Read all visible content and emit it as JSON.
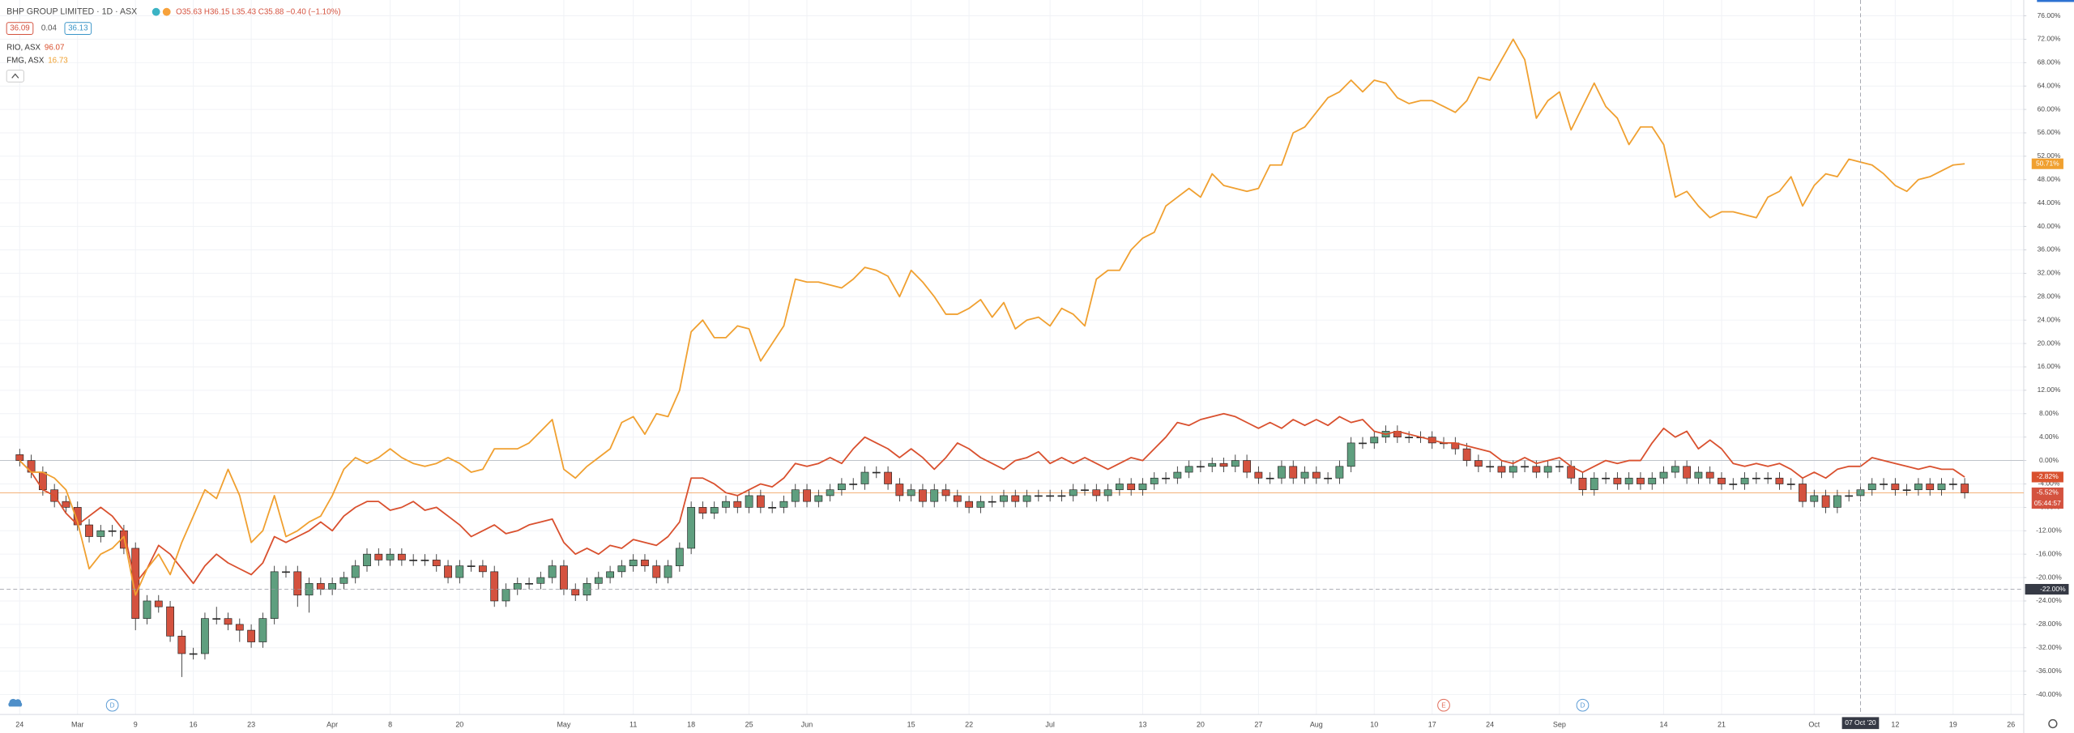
{
  "header": {
    "title": "BHP GROUP LIMITED · 1D · ASX",
    "ohlc": "O35.63 H36.15 L35.43 C35.88 −0.40 (−1.10%)",
    "bid": "36.09",
    "spread": "0.04",
    "ask": "36.13"
  },
  "chart_data": {
    "type": "candlestick",
    "xlim": [
      -1.7,
      173.1
    ],
    "ylim": [
      -43.4,
      78.7
    ],
    "grid": true,
    "xticks": [
      {
        "value": 0,
        "label": "24"
      },
      {
        "value": 5,
        "label": "Mar"
      },
      {
        "value": 10,
        "label": "9"
      },
      {
        "value": 15,
        "label": "16"
      },
      {
        "value": 20,
        "label": "23"
      },
      {
        "value": 27,
        "label": "Apr"
      },
      {
        "value": 32,
        "label": "8"
      },
      {
        "value": 38,
        "label": "20"
      },
      {
        "value": 47,
        "label": "May"
      },
      {
        "value": 53,
        "label": "11"
      },
      {
        "value": 58,
        "label": "18"
      },
      {
        "value": 63,
        "label": "25"
      },
      {
        "value": 68,
        "label": "Jun"
      },
      {
        "value": 77,
        "label": "15"
      },
      {
        "value": 82,
        "label": "22"
      },
      {
        "value": 89,
        "label": "Jul"
      },
      {
        "value": 97,
        "label": "13"
      },
      {
        "value": 102,
        "label": "20"
      },
      {
        "value": 107,
        "label": "27"
      },
      {
        "value": 112,
        "label": "Aug"
      },
      {
        "value": 117,
        "label": "10"
      },
      {
        "value": 122,
        "label": "17"
      },
      {
        "value": 127,
        "label": "24"
      },
      {
        "value": 133,
        "label": "Sep"
      },
      {
        "value": 142,
        "label": "14"
      },
      {
        "value": 147,
        "label": "21"
      },
      {
        "value": 155,
        "label": "Oct"
      },
      {
        "value": 162,
        "label": "12"
      },
      {
        "value": 167,
        "label": "19"
      },
      {
        "value": 172,
        "label": "26"
      }
    ],
    "yticks": [
      {
        "value": -40,
        "label": "-40.00%"
      },
      {
        "value": -36,
        "label": "-36.00%"
      },
      {
        "value": -32,
        "label": "-32.00%"
      },
      {
        "value": -28,
        "label": "-28.00%"
      },
      {
        "value": -24,
        "label": "-24.00%"
      },
      {
        "value": -20,
        "label": "-20.00%"
      },
      {
        "value": -16,
        "label": "-16.00%"
      },
      {
        "value": -12,
        "label": "-12.00%"
      },
      {
        "value": -8,
        "label": "-8.00%"
      },
      {
        "value": -4,
        "label": "-4.00%"
      },
      {
        "value": 0,
        "label": "0.00%"
      },
      {
        "value": 4,
        "label": "4.00%"
      },
      {
        "value": 8,
        "label": "8.00%"
      },
      {
        "value": 12,
        "label": "12.00%"
      },
      {
        "value": 16,
        "label": "16.00%"
      },
      {
        "value": 20,
        "label": "20.00%"
      },
      {
        "value": 24,
        "label": "24.00%"
      },
      {
        "value": 28,
        "label": "28.00%"
      },
      {
        "value": 32,
        "label": "32.00%"
      },
      {
        "value": 36,
        "label": "36.00%"
      },
      {
        "value": 40,
        "label": "40.00%"
      },
      {
        "value": 44,
        "label": "44.00%"
      },
      {
        "value": 48,
        "label": "48.00%"
      },
      {
        "value": 52,
        "label": "52.00%"
      },
      {
        "value": 56,
        "label": "56.00%"
      },
      {
        "value": 60,
        "label": "60.00%"
      },
      {
        "value": 64,
        "label": "64.00%"
      },
      {
        "value": 68,
        "label": "68.00%"
      },
      {
        "value": 72,
        "label": "72.00%"
      },
      {
        "value": 76,
        "label": "76.00%"
      }
    ],
    "series": [
      {
        "type": "candlestick",
        "up_color": "#5f9f7f",
        "down_color": "#d4523f",
        "color": "#f3b27a",
        "last_label": "-5.52%",
        "countdown": "05:44:57",
        "open": [
          1,
          0,
          -2,
          -5,
          -7,
          -8,
          -11,
          -13,
          -12,
          -12,
          -15,
          -27,
          -24,
          -25,
          -30,
          -33,
          -33,
          -27,
          -27,
          -28,
          -29,
          -31,
          -27,
          -19,
          -19,
          -23,
          -21,
          -22,
          -21,
          -20,
          -18,
          -16,
          -17,
          -16,
          -17,
          -17,
          -17,
          -18,
          -20,
          -18,
          -18,
          -19,
          -24,
          -22,
          -21,
          -21,
          -20,
          -18,
          -22,
          -23,
          -21,
          -20,
          -19,
          -18,
          -17,
          -18,
          -20,
          -18,
          -15,
          -8,
          -9,
          -8,
          -7,
          -8,
          -6,
          -8,
          -8,
          -7,
          -5,
          -7,
          -6,
          -5,
          -4,
          -4,
          -2,
          -2,
          -4,
          -6,
          -5,
          -7,
          -5,
          -6,
          -7,
          -8,
          -7,
          -7,
          -6,
          -7,
          -6,
          -6,
          -6,
          -6,
          -5,
          -5,
          -6,
          -5,
          -4,
          -5,
          -4,
          -3,
          -3,
          -2,
          -1,
          -1,
          -0.5,
          -1,
          0,
          -2,
          -3,
          -3,
          -1,
          -3,
          -2,
          -3,
          -3,
          -1,
          3,
          3,
          4,
          5,
          4,
          4,
          4,
          3,
          3,
          2,
          0,
          -1,
          -1,
          -2,
          -1,
          -1,
          -2,
          -1,
          -1,
          -3,
          -5,
          -3,
          -3,
          -4,
          -3,
          -4,
          -3,
          -2,
          -1,
          -3,
          -2,
          -3,
          -4,
          -4,
          -3,
          -3,
          -3,
          -4,
          -4,
          -7,
          -6,
          -8,
          -6,
          -6,
          -5,
          -4,
          -4,
          -5,
          -5,
          -4,
          -5,
          -4,
          -4
        ],
        "high": [
          2,
          1,
          -1,
          -4,
          -6,
          -7,
          -10,
          -11,
          -11,
          -11,
          -14,
          -23,
          -23,
          -24,
          -29,
          -32,
          -26,
          -25,
          -26,
          -27,
          -28,
          -26,
          -18,
          -18,
          -18,
          -20,
          -20,
          -20,
          -19,
          -17,
          -15,
          -15,
          -15,
          -15,
          -16,
          -16,
          -16,
          -17,
          -17,
          -17,
          -17,
          -18,
          -21,
          -20,
          -20,
          -19,
          -17,
          -17,
          -21,
          -20,
          -19,
          -18,
          -17,
          -16,
          -16,
          -17,
          -17,
          -14,
          -7,
          -7,
          -7,
          -6,
          -6,
          -5,
          -5,
          -7,
          -6,
          -4,
          -4,
          -5,
          -4,
          -3,
          -3,
          -1,
          -1,
          -1,
          -3,
          -4,
          -4,
          -4,
          -4,
          -5,
          -6,
          -6,
          -6,
          -5,
          -5,
          -5,
          -5,
          -5,
          -5,
          -4,
          -4,
          -4,
          -4,
          -3,
          -3,
          -3,
          -2,
          -2,
          -1,
          0,
          0,
          0.5,
          0.5,
          1,
          1,
          -1,
          -2,
          0,
          0,
          -1,
          -1,
          -2,
          0,
          4,
          4,
          5,
          6,
          6,
          5,
          5,
          5,
          4,
          4,
          3,
          1,
          0,
          0,
          0,
          0,
          0,
          0,
          0,
          0,
          -2,
          -2,
          -2,
          -2,
          -2,
          -2,
          -2,
          -1,
          0,
          0,
          -1,
          -1,
          -2,
          -3,
          -2,
          -2,
          -2,
          -2,
          -3,
          -3,
          -5,
          -5,
          -5,
          -5,
          -4,
          -3,
          -3,
          -3,
          -4,
          -3,
          -3,
          -3,
          -3,
          -3
        ],
        "low": [
          -1,
          -3,
          -6,
          -8,
          -9,
          -12,
          -14,
          -14,
          -13,
          -16,
          -29,
          -28,
          -26,
          -31,
          -37,
          -34,
          -34,
          -28,
          -29,
          -31,
          -32,
          -32,
          -28,
          -20,
          -25,
          -26,
          -23,
          -23,
          -22,
          -21,
          -19,
          -18,
          -18,
          -18,
          -18,
          -18,
          -19,
          -21,
          -21,
          -19,
          -20,
          -25,
          -25,
          -23,
          -22,
          -22,
          -21,
          -23,
          -24,
          -24,
          -22,
          -21,
          -20,
          -19,
          -19,
          -21,
          -21,
          -19,
          -16,
          -10,
          -10,
          -9,
          -9,
          -9,
          -9,
          -9,
          -9,
          -8,
          -8,
          -8,
          -7,
          -6,
          -5,
          -5,
          -3,
          -5,
          -7,
          -7,
          -8,
          -8,
          -7,
          -8,
          -9,
          -9,
          -8,
          -8,
          -8,
          -8,
          -7,
          -7,
          -7,
          -7,
          -6,
          -7,
          -7,
          -6,
          -6,
          -6,
          -5,
          -4,
          -4,
          -3,
          -2,
          -2,
          -2,
          -2,
          -3,
          -4,
          -4,
          -4,
          -4,
          -4,
          -4,
          -4,
          -4,
          -2,
          2,
          2,
          3,
          3,
          3,
          3,
          2,
          2,
          1,
          -1,
          -2,
          -2,
          -3,
          -3,
          -2,
          -3,
          -3,
          -2,
          -4,
          -6,
          -6,
          -4,
          -5,
          -5,
          -5,
          -5,
          -4,
          -3,
          -4,
          -4,
          -4,
          -5,
          -5,
          -5,
          -4,
          -4,
          -5,
          -5,
          -8,
          -8,
          -9,
          -9,
          -7,
          -7,
          -6,
          -5,
          -6,
          -6,
          -6,
          -6,
          -6,
          -5,
          -6.5
        ],
        "close": [
          0,
          -2,
          -5,
          -7,
          -8,
          -11,
          -13,
          -12,
          -12,
          -15,
          -27,
          -24,
          -25,
          -30,
          -33,
          -33,
          -27,
          -27,
          -28,
          -29,
          -31,
          -27,
          -19,
          -19,
          -23,
          -21,
          -22,
          -21,
          -20,
          -18,
          -16,
          -17,
          -16,
          -17,
          -17,
          -17,
          -18,
          -20,
          -18,
          -18,
          -19,
          -24,
          -22,
          -21,
          -21,
          -20,
          -18,
          -22,
          -23,
          -21,
          -20,
          -19,
          -18,
          -17,
          -18,
          -20,
          -18,
          -15,
          -8,
          -9,
          -8,
          -7,
          -8,
          -6,
          -8,
          -8,
          -7,
          -5,
          -7,
          -6,
          -5,
          -4,
          -4,
          -2,
          -2,
          -4,
          -6,
          -5,
          -7,
          -5,
          -6,
          -7,
          -8,
          -7,
          -7,
          -6,
          -7,
          -6,
          -6,
          -6,
          -6,
          -5,
          -5,
          -6,
          -5,
          -4,
          -5,
          -4,
          -3,
          -3,
          -2,
          -1,
          -1,
          -0.5,
          -1,
          0,
          -2,
          -3,
          -3,
          -1,
          -3,
          -2,
          -3,
          -3,
          -1,
          3,
          3,
          4,
          5,
          4,
          4,
          4,
          3,
          3,
          2,
          0,
          -1,
          -1,
          -2,
          -1,
          -1,
          -2,
          -1,
          -1,
          -3,
          -5,
          -3,
          -3,
          -4,
          -3,
          -4,
          -3,
          -2,
          -1,
          -3,
          -2,
          -3,
          -4,
          -4,
          -3,
          -3,
          -3,
          -4,
          -4,
          -7,
          -6,
          -8,
          -6,
          -6,
          -5,
          -4,
          -4,
          -5,
          -5,
          -4,
          -5,
          -4,
          -4,
          -5.52
        ]
      },
      {
        "type": "line",
        "name": "RIO, ASX",
        "legend_value": "96.07",
        "color": "#d9502e",
        "last_label": "-2.82%",
        "values": [
          0,
          -2,
          -5,
          -6,
          -9,
          -11,
          -9.5,
          -8,
          -9.5,
          -12,
          -21,
          -18.5,
          -14.5,
          -16,
          -18.5,
          -21,
          -18,
          -16,
          -17.5,
          -18.5,
          -19.5,
          -17.5,
          -13,
          -14,
          -13,
          -12,
          -10.5,
          -12,
          -9.5,
          -8,
          -7,
          -7,
          -8.5,
          -8,
          -7,
          -8.5,
          -8,
          -9.5,
          -11,
          -13,
          -12,
          -11,
          -12.5,
          -12,
          -11,
          -10.5,
          -10,
          -14,
          -16,
          -15,
          -16,
          -14.5,
          -15,
          -13.5,
          -14,
          -14.5,
          -13,
          -10.5,
          -3,
          -3,
          -4,
          -5.5,
          -6,
          -5,
          -4,
          -4.5,
          -3,
          -0.5,
          -1,
          -0.5,
          0.5,
          -0.5,
          2,
          4,
          3,
          2,
          0.5,
          2,
          0.5,
          -1.5,
          0.5,
          3,
          2,
          0.5,
          -0.5,
          -1.5,
          0,
          0.5,
          1.5,
          -0.5,
          0.5,
          -0.5,
          0.5,
          -0.5,
          -1.5,
          -0.5,
          0.5,
          0,
          2,
          4,
          6.5,
          6,
          7,
          7.5,
          8,
          7.5,
          6.5,
          5.5,
          6.5,
          5.5,
          7,
          6,
          7,
          6,
          7.5,
          6.5,
          7,
          5,
          4.5,
          5,
          4.5,
          4,
          3.5,
          3,
          3,
          2.5,
          2,
          1.5,
          0,
          -0.5,
          0.5,
          -0.5,
          0,
          0.5,
          -1,
          -2,
          -1,
          0,
          -0.5,
          0,
          0,
          3,
          5.5,
          4,
          5,
          2,
          3.5,
          2,
          -0.5,
          -1,
          -0.5,
          -1,
          -0.5,
          -1.5,
          -3,
          -2,
          -3,
          -1.5,
          -1,
          -1,
          0.5,
          0,
          -0.5,
          -1,
          -1.5,
          -1,
          -1.5,
          -1.5,
          -2.82
        ]
      },
      {
        "type": "line",
        "name": "FMG, ASX",
        "legend_value": "16.73",
        "color": "#f0a030",
        "last_label": "50.71%",
        "values": [
          0,
          -2,
          -2,
          -3,
          -5,
          -10.5,
          -18.5,
          -16,
          -15,
          -13,
          -23,
          -18.5,
          -16,
          -19.5,
          -14,
          -9.5,
          -5,
          -6.5,
          -1.5,
          -6,
          -14,
          -12,
          -6,
          -13,
          -12,
          -10.5,
          -9.5,
          -6,
          -1.5,
          0.5,
          -0.5,
          0.5,
          2,
          0.5,
          -0.5,
          -1,
          -0.5,
          0.5,
          -0.5,
          -2,
          -1.5,
          2,
          2,
          2,
          3,
          5,
          7,
          -1.5,
          -3,
          -1,
          0.5,
          2,
          6.5,
          7.5,
          4.5,
          8,
          7.5,
          12,
          22,
          24,
          21,
          21,
          23,
          22.5,
          17,
          20,
          23,
          31,
          30.5,
          30.5,
          30,
          29.5,
          31,
          33,
          32.5,
          31.5,
          28,
          32.5,
          30.5,
          28,
          25,
          25,
          26,
          27.5,
          24.5,
          27,
          22.5,
          24,
          24.5,
          23,
          26,
          25,
          23,
          31,
          32.5,
          32.5,
          36,
          38,
          39,
          43.5,
          45,
          46.5,
          45,
          49,
          47,
          46.5,
          46,
          46.5,
          50.5,
          50.5,
          56,
          57,
          59.5,
          62,
          63,
          65,
          63,
          65,
          64.5,
          62,
          61,
          61.5,
          61.5,
          60.5,
          59.5,
          61.5,
          65.5,
          65,
          68.5,
          72,
          68.5,
          58.5,
          61.5,
          63,
          56.5,
          60.5,
          64.5,
          60.5,
          58.5,
          54,
          57,
          57,
          54,
          45,
          46,
          43.5,
          41.5,
          42.5,
          42.5,
          42,
          41.5,
          45,
          46,
          48.5,
          43.5,
          47,
          49,
          48.5,
          51.5,
          51,
          50.5,
          49,
          47,
          46,
          48,
          48.5,
          49.5,
          50.5,
          50.71
        ]
      }
    ],
    "crosshair": {
      "x": 159,
      "x_label": "07 Oct '20",
      "y": -22,
      "y_label": "-22.00%"
    },
    "events": [
      {
        "x": 8,
        "label": "D",
        "color": "#5b9bd5"
      },
      {
        "x": 123,
        "label": "E",
        "color": "#e06c5a"
      },
      {
        "x": 135,
        "label": "D",
        "color": "#5b9bd5"
      }
    ]
  }
}
